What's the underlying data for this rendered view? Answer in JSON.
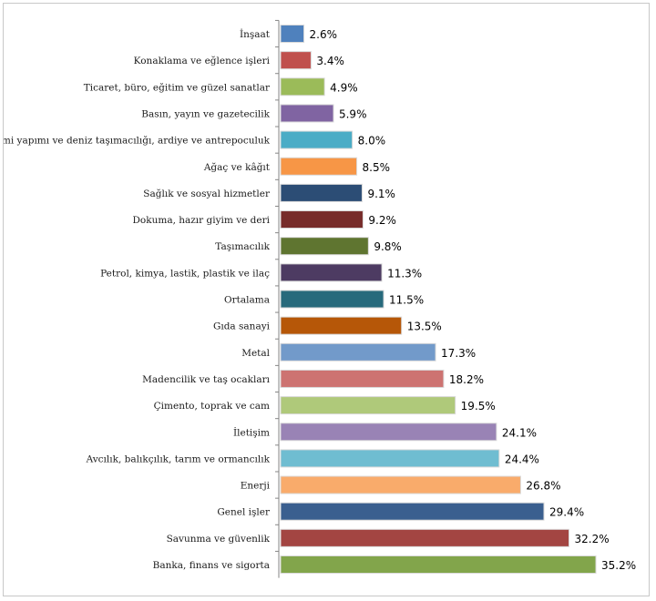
{
  "chart_data": {
    "type": "bar",
    "orientation": "horizontal",
    "title": "",
    "xlabel": "",
    "ylabel": "",
    "grid": false,
    "legend": "none",
    "categories": [
      "İnşaat",
      "Konaklama ve eğlence işleri",
      "Ticaret, büro, eğitim ve güzel sanatlar",
      "Basın, yayın ve gazetecilik",
      "Gemi yapımı ve deniz taşımacılığı, ardiye ve antrepoculuk",
      "Ağaç ve kâğıt",
      "Sağlık ve sosyal hizmetler",
      "Dokuma, hazır giyim ve deri",
      "Taşımacılık",
      "Petrol, kimya, lastik, plastik ve ilaç",
      "Ortalama",
      "Gıda sanayi",
      "Metal",
      "Madencilik ve taş ocakları",
      "Çimento, toprak ve cam",
      "İletişim",
      "Avcılık, balıkçılık, tarım ve ormancılık",
      "Enerji",
      "Genel işler",
      "Savunma ve güvenlik",
      "Banka, finans ve sigorta"
    ],
    "values": [
      2.6,
      3.4,
      4.9,
      5.9,
      8.0,
      8.5,
      9.1,
      9.2,
      9.8,
      11.3,
      11.5,
      13.5,
      17.3,
      18.2,
      19.5,
      24.1,
      24.4,
      26.8,
      29.4,
      32.2,
      35.2
    ],
    "value_labels": [
      "2.6%",
      "3.4%",
      "4.9%",
      "5.9%",
      "8.0%",
      "8.5%",
      "9.1%",
      "9.2%",
      "9.8%",
      "11.3%",
      "11.5%",
      "13.5%",
      "17.3%",
      "18.2%",
      "19.5%",
      "24.1%",
      "24.4%",
      "26.8%",
      "29.4%",
      "32.2%",
      "35.2%"
    ],
    "colors": [
      "#4f81bd",
      "#c0504d",
      "#9bbb59",
      "#8064a2",
      "#4bacc6",
      "#f79646",
      "#2c4d75",
      "#772c2a",
      "#5f7530",
      "#4d3b62",
      "#276a7c",
      "#b65708",
      "#729aca",
      "#cd7371",
      "#afc97a",
      "#9983b5",
      "#6fbdd1",
      "#f9ab6b",
      "#3a5f8f",
      "#a34542",
      "#82a54b"
    ],
    "xlim": [
      0,
      35.2
    ]
  }
}
